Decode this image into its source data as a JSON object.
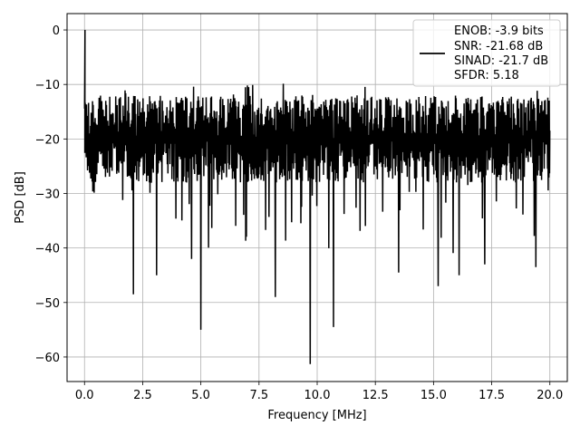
{
  "chart_data": {
    "type": "line",
    "xlabel": "Frequency [MHz]",
    "ylabel": "PSD [dB]",
    "xlim": [
      -0.75,
      20.75
    ],
    "ylim": [
      -64.5,
      3.0
    ],
    "x_ticks": [
      0.0,
      2.5,
      5.0,
      7.5,
      10.0,
      12.5,
      15.0,
      17.5,
      20.0
    ],
    "x_tick_labels": [
      "0.0",
      "2.5",
      "5.0",
      "7.5",
      "10.0",
      "12.5",
      "15.0",
      "17.5",
      "20.0"
    ],
    "y_ticks": [
      0,
      -10,
      -20,
      -30,
      -40,
      -50,
      -60
    ],
    "y_tick_labels": [
      "0",
      "−10",
      "−20",
      "−30",
      "−40",
      "−50",
      "−60"
    ],
    "grid": true,
    "legend_position": "top-right",
    "color": "#000000",
    "series": [
      {
        "name": "ENOB: -3.9 bits\nSNR: -21.68 dB\nSINAD: -21.7 dB\nSFDR: 5.18",
        "x_range": [
          0.0,
          20.0
        ],
        "peak": {
          "x": 0.02,
          "y": 0.0
        },
        "baseline": {
          "upper": -12,
          "lower": -28,
          "min_noise": -40
        },
        "notable_dips": [
          {
            "x": 2.1,
            "y": -48.5
          },
          {
            "x": 3.1,
            "y": -45.0
          },
          {
            "x": 4.6,
            "y": -42.0
          },
          {
            "x": 5.0,
            "y": -55.0
          },
          {
            "x": 8.2,
            "y": -49.0
          },
          {
            "x": 9.7,
            "y": -61.3
          },
          {
            "x": 10.7,
            "y": -54.5
          },
          {
            "x": 13.5,
            "y": -44.5
          },
          {
            "x": 15.2,
            "y": -47.0
          },
          {
            "x": 16.1,
            "y": -45.0
          },
          {
            "x": 17.2,
            "y": -43.0
          },
          {
            "x": 19.4,
            "y": -43.5
          }
        ]
      }
    ],
    "legend": {
      "lines": [
        "ENOB: -3.9 bits",
        "SNR: -21.68 dB",
        "SINAD: -21.7 dB",
        "SFDR: 5.18"
      ]
    }
  }
}
